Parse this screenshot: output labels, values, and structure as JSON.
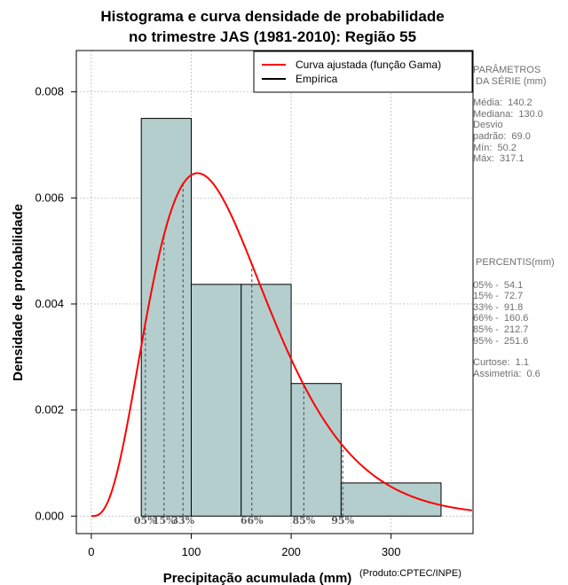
{
  "chart_data": {
    "type": "histogram",
    "title_line1": "Histograma e curva densidade de probabilidade",
    "title_line2": "no trimestre JAS (1981-2010): Região 55",
    "xlabel": "Precipitação acumulada (mm)",
    "ylabel": "Densidade de probabilidade",
    "xlim": [
      -15,
      382
    ],
    "ylim": [
      -0.00033,
      0.00878
    ],
    "x_ticks": [
      0,
      100,
      200,
      300
    ],
    "y_ticks": [
      0.0,
      0.002,
      0.004,
      0.006,
      0.008
    ],
    "y_tick_labels": [
      "0.000",
      "0.002",
      "0.004",
      "0.006",
      "0.008"
    ],
    "bins": [
      {
        "x0": 50,
        "x1": 100,
        "density": 0.0075
      },
      {
        "x0": 100,
        "x1": 150,
        "density": 0.00437
      },
      {
        "x0": 150,
        "x1": 200,
        "density": 0.00437
      },
      {
        "x0": 200,
        "x1": 250,
        "density": 0.0025
      },
      {
        "x0": 250,
        "x1": 350,
        "density": 0.000625
      }
    ],
    "gamma_fit": {
      "mean": 140.2,
      "sd": 69.0
    },
    "percentile_markers": [
      {
        "label": "05%",
        "value": 54.1
      },
      {
        "label": "15%",
        "value": 72.7
      },
      {
        "label": "33%",
        "value": 91.8
      },
      {
        "label": "66%",
        "value": 160.6
      },
      {
        "label": "85%",
        "value": 212.7
      },
      {
        "label": "95%",
        "value": 251.6
      }
    ],
    "legend": [
      {
        "label": "Curva ajustada (função Gama)",
        "color": "#ff0000"
      },
      {
        "label": "Empírica",
        "color": "#000000"
      }
    ],
    "colors": {
      "bar_fill": "#b4cece",
      "curve": "#ff0000",
      "grid": "#b0b0b0",
      "marker": "#555555"
    }
  },
  "params_panel": {
    "header": [
      "PARÂMETROS",
      " DA SÉRIE (mm)"
    ],
    "lines": [
      "Média:  140.2",
      "Mediana:  130.0",
      "Desvio",
      "padrão:  69.0",
      "Mín:  50.2",
      "Máx:  317.1"
    ]
  },
  "percentiles_panel": {
    "header": " PERCENTIS(mm)",
    "lines": [
      "05% -  54.1",
      "15% -  72.7",
      "33% -  91.8",
      "66% -  160.6",
      "85% -  212.7",
      "95% -  251.6"
    ],
    "extra": [
      "Curtose:  1.1",
      "Assimetria:  0.6"
    ]
  },
  "credit": "(Produto:CPTEC/INPE)"
}
